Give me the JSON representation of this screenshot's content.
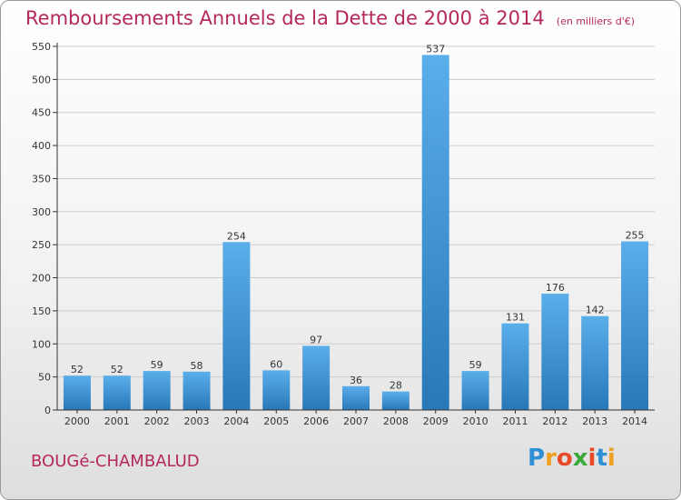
{
  "header": {
    "title": "Remboursements Annuels de la Dette de 2000 à 2014",
    "unit": "(en milliers d'€)"
  },
  "footer": {
    "commune": "BOUGé-CHAMBALUD",
    "logo": {
      "text": "Proxiti",
      "letters": [
        "P",
        "r",
        "o",
        "x",
        "i",
        "t",
        "i"
      ],
      "colors": [
        "#2f8fd4",
        "#f0a020",
        "#e84a2a",
        "#3aaa3a",
        "#e84a2a",
        "#2f8fd4",
        "#f0a020"
      ]
    }
  },
  "chart_data": {
    "type": "bar",
    "title": "Remboursements Annuels de la Dette de 2000 à 2014",
    "subtitle": "(en milliers d'€)",
    "xlabel": "",
    "ylabel": "",
    "categories": [
      "2000",
      "2001",
      "2002",
      "2003",
      "2004",
      "2005",
      "2006",
      "2007",
      "2008",
      "2009",
      "2010",
      "2011",
      "2012",
      "2013",
      "2014"
    ],
    "values": [
      52,
      52,
      59,
      58,
      254,
      60,
      97,
      36,
      28,
      537,
      59,
      131,
      176,
      142,
      255
    ],
    "ylim": [
      0,
      550
    ],
    "yticks": [
      0,
      50,
      100,
      150,
      200,
      250,
      300,
      350,
      400,
      450,
      500,
      550
    ],
    "grid": true,
    "colors": {
      "bar_top": "#5aaeea",
      "bar_bottom": "#2878b8",
      "grid": "#cccccc",
      "title": "#b5285d"
    }
  }
}
